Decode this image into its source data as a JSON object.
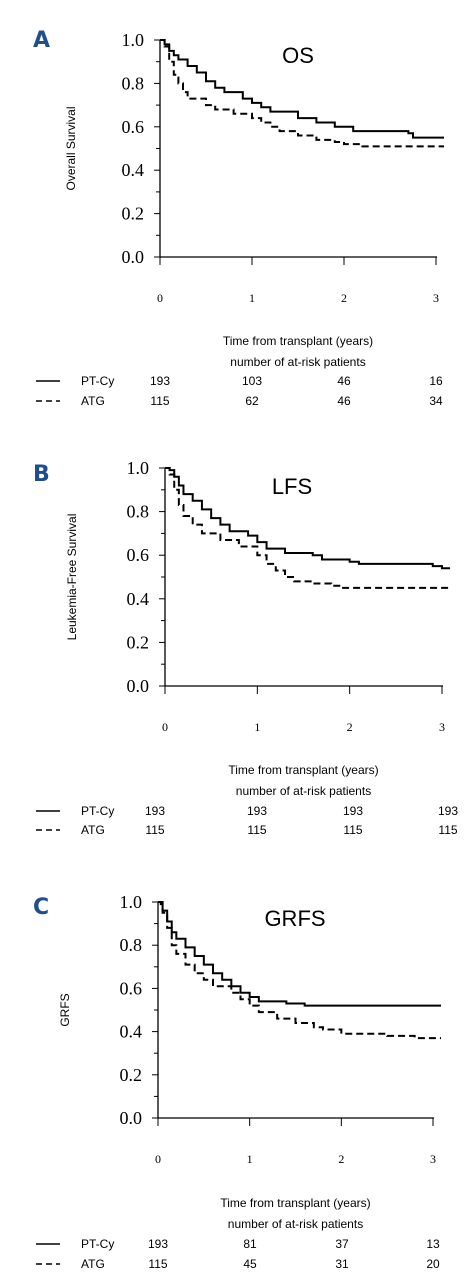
{
  "chart_data": [
    {
      "type": "line",
      "panel": "A",
      "title": "OS",
      "ylabel": "Overall Survival",
      "xlabel": "Time from transplant (years)",
      "risk_header": "number of at-risk patients",
      "ylim": [
        0,
        1
      ],
      "xlim": [
        0,
        3
      ],
      "yticks": [
        "0.0",
        "0.2",
        "0.4",
        "0.6",
        "0.8",
        "1.0"
      ],
      "xticks": [
        "0",
        "1",
        "2",
        "3"
      ],
      "series": [
        {
          "name": "PT-Cy",
          "style": "solid",
          "points": [
            [
              0,
              1.0
            ],
            [
              0.03,
              1.0
            ],
            [
              0.05,
              0.98
            ],
            [
              0.1,
              0.95
            ],
            [
              0.15,
              0.93
            ],
            [
              0.2,
              0.91
            ],
            [
              0.3,
              0.88
            ],
            [
              0.4,
              0.85
            ],
            [
              0.5,
              0.81
            ],
            [
              0.6,
              0.78
            ],
            [
              0.7,
              0.76
            ],
            [
              0.9,
              0.73
            ],
            [
              1.0,
              0.71
            ],
            [
              1.1,
              0.69
            ],
            [
              1.2,
              0.67
            ],
            [
              1.5,
              0.64
            ],
            [
              1.7,
              0.62
            ],
            [
              1.9,
              0.6
            ],
            [
              2.1,
              0.58
            ],
            [
              2.7,
              0.57
            ],
            [
              2.75,
              0.55
            ],
            [
              3.1,
              0.55
            ]
          ],
          "at_risk": [
            "193",
            "103",
            "46",
            "16"
          ]
        },
        {
          "name": "ATG",
          "style": "dashed",
          "points": [
            [
              0,
              1.0
            ],
            [
              0.05,
              0.97
            ],
            [
              0.1,
              0.9
            ],
            [
              0.15,
              0.84
            ],
            [
              0.2,
              0.8
            ],
            [
              0.25,
              0.76
            ],
            [
              0.3,
              0.73
            ],
            [
              0.5,
              0.7
            ],
            [
              0.6,
              0.68
            ],
            [
              0.8,
              0.66
            ],
            [
              1.0,
              0.64
            ],
            [
              1.1,
              0.62
            ],
            [
              1.2,
              0.6
            ],
            [
              1.3,
              0.58
            ],
            [
              1.5,
              0.56
            ],
            [
              1.7,
              0.54
            ],
            [
              1.9,
              0.53
            ],
            [
              2.0,
              0.52
            ],
            [
              2.2,
              0.51
            ],
            [
              3.1,
              0.51
            ]
          ],
          "at_risk": [
            "115",
            "62",
            "46",
            "34"
          ]
        }
      ]
    },
    {
      "type": "line",
      "panel": "B",
      "title": "LFS",
      "ylabel": "Leukemia-Free Survival",
      "xlabel": "Time from transplant (years)",
      "risk_header": "number of at-risk patients",
      "ylim": [
        0,
        1
      ],
      "xlim": [
        0,
        3
      ],
      "yticks": [
        "0.0",
        "0.2",
        "0.4",
        "0.6",
        "0.8",
        "1.0"
      ],
      "xticks": [
        "0",
        "1",
        "2",
        "3"
      ],
      "series": [
        {
          "name": "PT-Cy",
          "style": "solid",
          "points": [
            [
              0,
              1.0
            ],
            [
              0.05,
              0.99
            ],
            [
              0.1,
              0.96
            ],
            [
              0.15,
              0.92
            ],
            [
              0.2,
              0.88
            ],
            [
              0.3,
              0.85
            ],
            [
              0.4,
              0.81
            ],
            [
              0.5,
              0.77
            ],
            [
              0.6,
              0.74
            ],
            [
              0.7,
              0.71
            ],
            [
              0.9,
              0.69
            ],
            [
              1.0,
              0.66
            ],
            [
              1.1,
              0.63
            ],
            [
              1.3,
              0.61
            ],
            [
              1.6,
              0.6
            ],
            [
              1.7,
              0.58
            ],
            [
              2.0,
              0.57
            ],
            [
              2.1,
              0.56
            ],
            [
              2.9,
              0.55
            ],
            [
              3.0,
              0.54
            ],
            [
              3.1,
              0.54
            ]
          ],
          "at_risk": [
            "193",
            "193",
            "193",
            "193"
          ]
        },
        {
          "name": "ATG",
          "style": "dashed",
          "points": [
            [
              0,
              1.0
            ],
            [
              0.05,
              0.97
            ],
            [
              0.1,
              0.9
            ],
            [
              0.15,
              0.83
            ],
            [
              0.2,
              0.78
            ],
            [
              0.3,
              0.74
            ],
            [
              0.4,
              0.7
            ],
            [
              0.6,
              0.67
            ],
            [
              0.8,
              0.64
            ],
            [
              1.0,
              0.6
            ],
            [
              1.1,
              0.56
            ],
            [
              1.2,
              0.53
            ],
            [
              1.3,
              0.5
            ],
            [
              1.4,
              0.48
            ],
            [
              1.6,
              0.47
            ],
            [
              1.8,
              0.46
            ],
            [
              1.9,
              0.45
            ],
            [
              3.1,
              0.45
            ]
          ],
          "at_risk": [
            "115",
            "115",
            "115",
            "115"
          ]
        }
      ]
    },
    {
      "type": "line",
      "panel": "C",
      "title": "GRFS",
      "ylabel": "GRFS",
      "xlabel": "Time from transplant (years)",
      "risk_header": "number of at-risk patients",
      "ylim": [
        0,
        1
      ],
      "xlim": [
        0,
        3
      ],
      "yticks": [
        "0.0",
        "0.2",
        "0.4",
        "0.6",
        "0.8",
        "1.0"
      ],
      "xticks": [
        "0",
        "1",
        "2",
        "3"
      ],
      "series": [
        {
          "name": "PT-Cy",
          "style": "solid",
          "points": [
            [
              0,
              1.0
            ],
            [
              0.03,
              0.99
            ],
            [
              0.05,
              0.96
            ],
            [
              0.1,
              0.91
            ],
            [
              0.15,
              0.86
            ],
            [
              0.2,
              0.83
            ],
            [
              0.3,
              0.79
            ],
            [
              0.4,
              0.75
            ],
            [
              0.5,
              0.71
            ],
            [
              0.6,
              0.67
            ],
            [
              0.7,
              0.64
            ],
            [
              0.8,
              0.61
            ],
            [
              0.9,
              0.58
            ],
            [
              1.0,
              0.56
            ],
            [
              1.1,
              0.54
            ],
            [
              1.4,
              0.53
            ],
            [
              1.6,
              0.52
            ],
            [
              3.1,
              0.52
            ]
          ],
          "at_risk": [
            "193",
            "81",
            "37",
            "13"
          ]
        },
        {
          "name": "ATG",
          "style": "dashed",
          "points": [
            [
              0,
              1.0
            ],
            [
              0.05,
              0.95
            ],
            [
              0.1,
              0.88
            ],
            [
              0.15,
              0.8
            ],
            [
              0.2,
              0.76
            ],
            [
              0.3,
              0.71
            ],
            [
              0.4,
              0.67
            ],
            [
              0.5,
              0.64
            ],
            [
              0.6,
              0.61
            ],
            [
              0.8,
              0.58
            ],
            [
              0.9,
              0.55
            ],
            [
              1.0,
              0.52
            ],
            [
              1.1,
              0.49
            ],
            [
              1.3,
              0.46
            ],
            [
              1.5,
              0.44
            ],
            [
              1.7,
              0.42
            ],
            [
              1.8,
              0.41
            ],
            [
              2.0,
              0.39
            ],
            [
              2.5,
              0.38
            ],
            [
              2.8,
              0.37
            ],
            [
              3.1,
              0.37
            ]
          ],
          "at_risk": [
            "115",
            "45",
            "31",
            "20"
          ]
        }
      ]
    }
  ]
}
